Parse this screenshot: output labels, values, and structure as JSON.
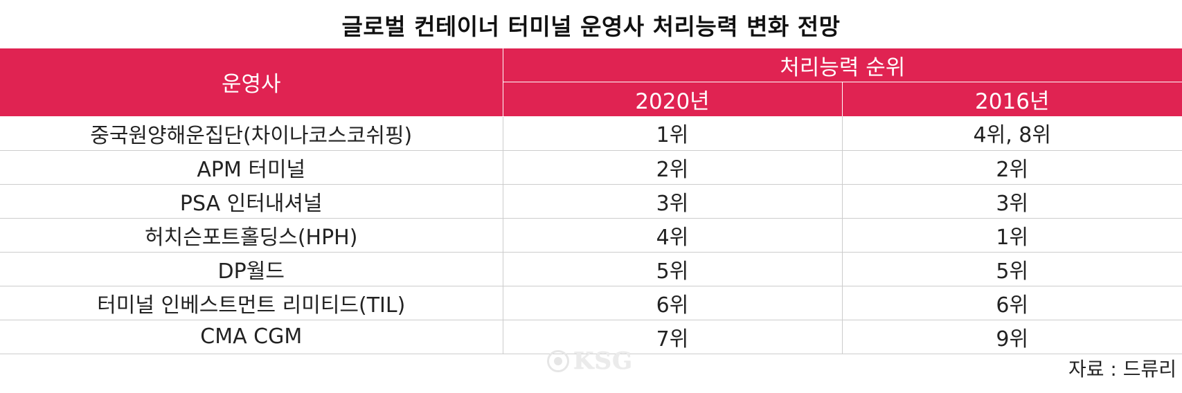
{
  "title": "글로벌 컨테이너 터미널 운영사 처리능력 변화 전망",
  "table": {
    "header": {
      "operator": "운영사",
      "rank_group": "처리능력 순위",
      "year_2020": "2020년",
      "year_2016": "2016년"
    },
    "rows": [
      {
        "operator": "중국원양해운집단(차이나코스코쉬핑)",
        "rank_2020": "1위",
        "rank_2016": "4위, 8위"
      },
      {
        "operator": "APM 터미널",
        "rank_2020": "2위",
        "rank_2016": "2위"
      },
      {
        "operator": "PSA 인터내셔널",
        "rank_2020": "3위",
        "rank_2016": "3위"
      },
      {
        "operator": "허치슨포트홀딩스(HPH)",
        "rank_2020": "4위",
        "rank_2016": "1위"
      },
      {
        "operator": "DP월드",
        "rank_2020": "5위",
        "rank_2016": "5위"
      },
      {
        "operator": "터미널 인베스트먼트 리미티드(TIL)",
        "rank_2020": "6위",
        "rank_2016": "6위"
      },
      {
        "operator": "CMA CGM",
        "rank_2020": "7위",
        "rank_2016": "9위"
      }
    ]
  },
  "watermark": "KSG",
  "source": "자료 : 드류리",
  "colors": {
    "header_bg": "#e02352",
    "header_text": "#ffffff",
    "grid_line": "#cccccc"
  }
}
